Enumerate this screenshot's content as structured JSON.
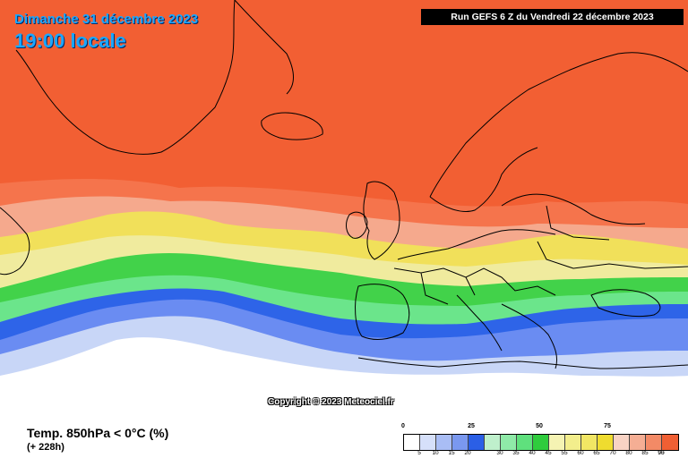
{
  "header": {
    "date": "Dimanche 31 décembre 2023",
    "time": "19:00 locale",
    "run": "Run GEFS 6 Z du Vendredi 22 décembre 2023"
  },
  "map": {
    "copyright": "Copyright © 2023 Meteociel.fr",
    "colors": {
      "band_95": "#f25f33",
      "band_90": "#f5744c",
      "band_80": "#f5a98d",
      "band_70": "#f1e05a",
      "band_60": "#f0eb9e",
      "band_45": "#42d24a",
      "band_35": "#6be58b",
      "band_25": "#2e64e8",
      "band_15": "#6a8cf2",
      "band_5": "#c8d6f7",
      "band_0": "#ffffff"
    }
  },
  "footer": {
    "variable": "Temp. 850hPa < 0°C (%)",
    "lead": "(+ 228h)"
  },
  "legend": {
    "major_ticks": [
      "0",
      "25",
      "50",
      "75"
    ],
    "values": [
      "5",
      "10",
      "15",
      "20",
      "30",
      "35",
      "40",
      "45",
      "55",
      "60",
      "65",
      "70",
      "80",
      "85",
      "90",
      "95"
    ],
    "colors": [
      "#ffffff",
      "#d6e0fa",
      "#a9bdf5",
      "#7a98ef",
      "#2b5fe6",
      "#bff0cc",
      "#8feaa8",
      "#5fe07d",
      "#2fcc3d",
      "#f5f3b3",
      "#f3ee8c",
      "#f1e664",
      "#efdc2f",
      "#f8d3c4",
      "#f5ae94",
      "#f38a66",
      "#f05f33"
    ]
  }
}
